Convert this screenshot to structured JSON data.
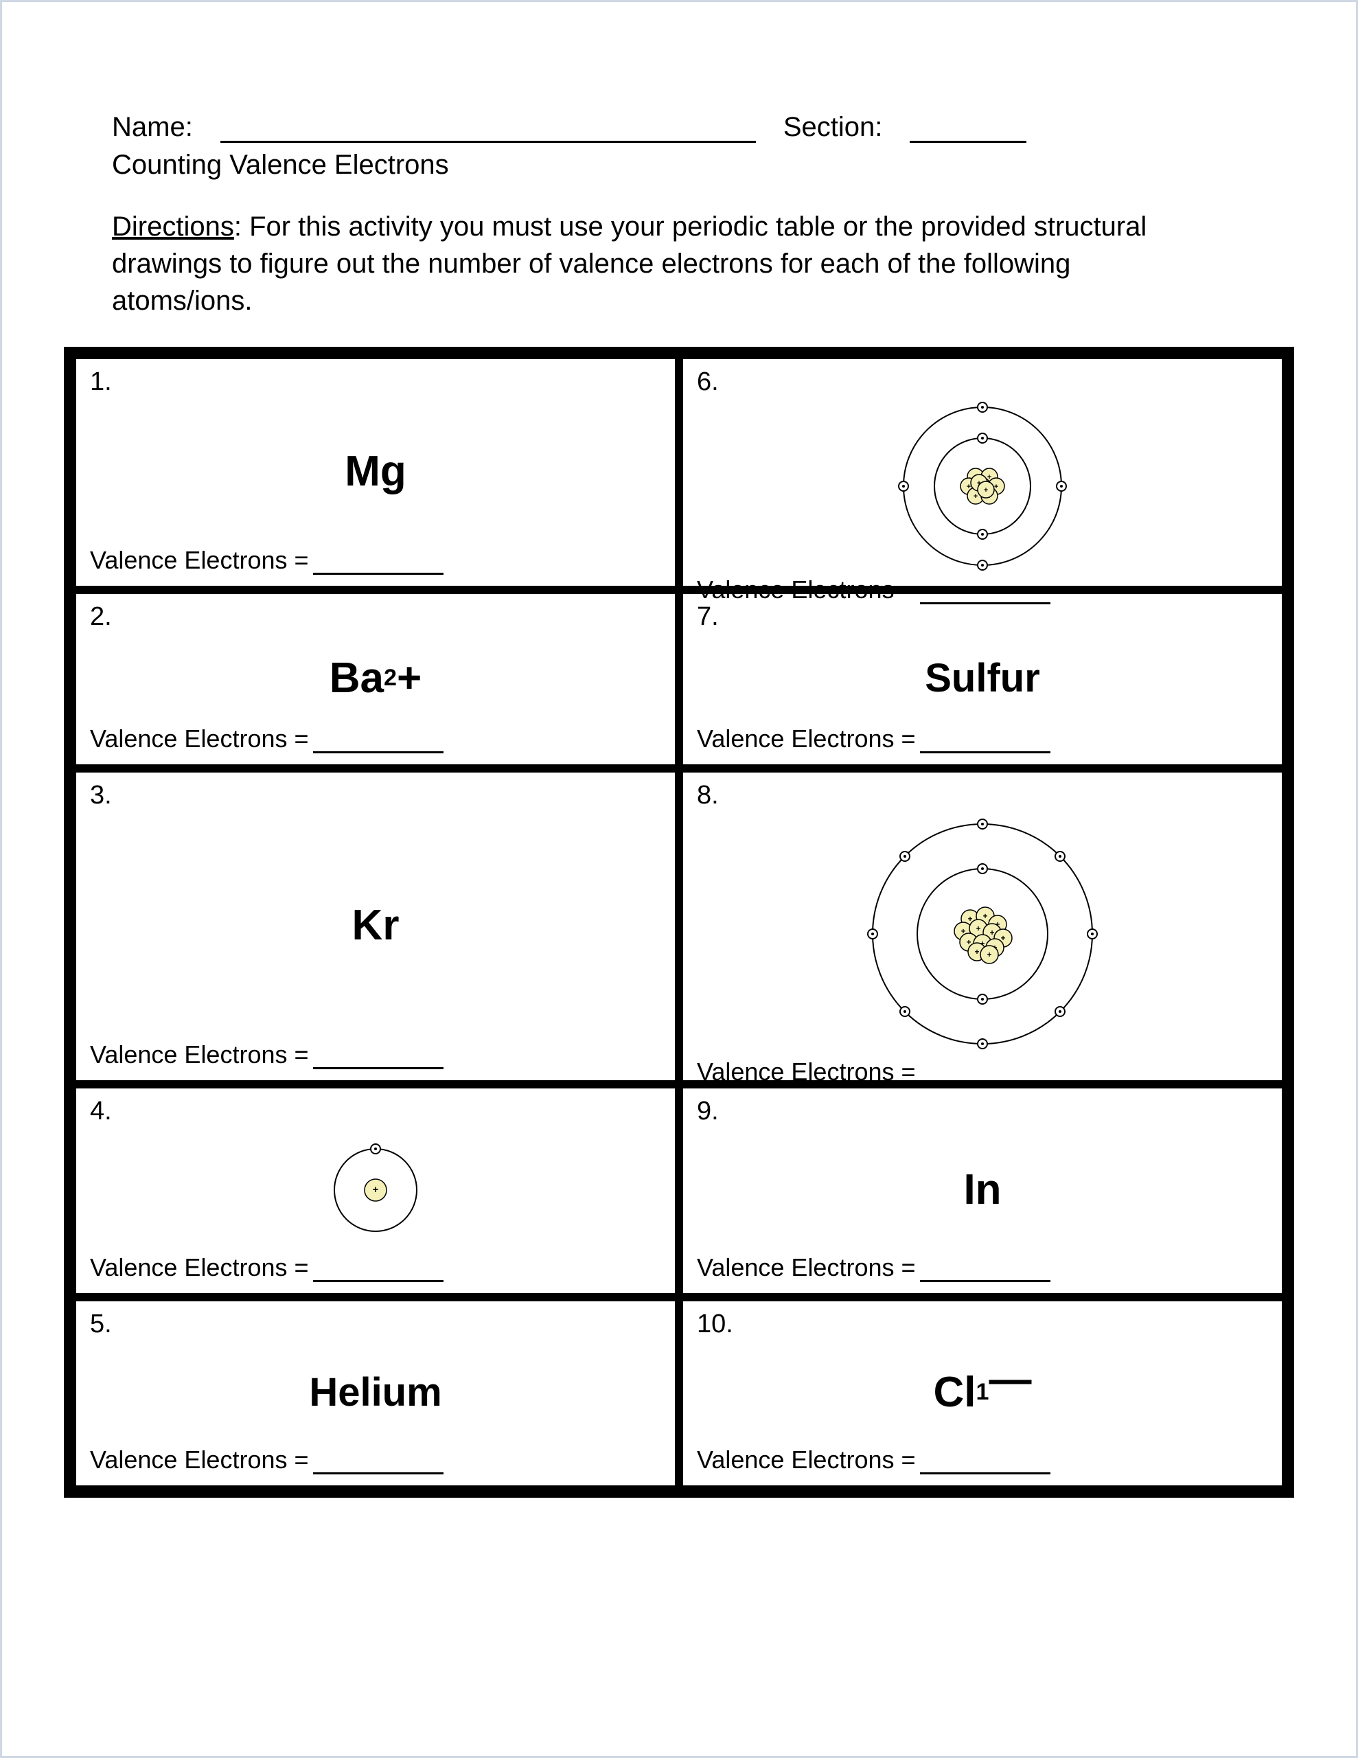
{
  "header": {
    "name_label": "Name:",
    "section_label": "Section:",
    "subtitle": "Counting Valence Electrons",
    "directions_label": "Directions",
    "directions_text": ":  For this activity you must use your periodic table or the provided structural drawings to figure out the number of valence electrons for each of the following atoms/ions."
  },
  "answer_label": "Valence Electrons =",
  "colors": {
    "nucleus_fill": "#f4f0b8",
    "electron_fill": "#ffffff",
    "stroke": "#000000"
  },
  "cells": [
    {
      "num": "1.",
      "type": "text",
      "content": "Mg",
      "row": "row-h1"
    },
    {
      "num": "2.",
      "type": "html",
      "content": "Ba<sup>2</sup>+",
      "row": "row-h2"
    },
    {
      "num": "3.",
      "type": "text",
      "content": "Kr",
      "row": "row-h3"
    },
    {
      "num": "4.",
      "type": "atom",
      "atom": "hydrogen",
      "row": "row-h4"
    },
    {
      "num": "5.",
      "type": "text",
      "content": "Helium",
      "row": "row-h5",
      "cls": "txt"
    },
    {
      "num": "6.",
      "type": "atom",
      "atom": "carbon",
      "row": "row-h1"
    },
    {
      "num": "7.",
      "type": "text",
      "content": "Sulfur",
      "row": "row-h2",
      "cls": "txt"
    },
    {
      "num": "8.",
      "type": "atom",
      "atom": "neon",
      "row": "row-h3"
    },
    {
      "num": "9.",
      "type": "text",
      "content": "In",
      "row": "row-h4"
    },
    {
      "num": "10.",
      "type": "html",
      "content": "Cl<sup>1</sup><span style='position:relative;top:-0.3em'>&#8212;</span>",
      "row": "row-h5"
    }
  ],
  "atoms": {
    "hydrogen": {
      "size": 180,
      "shells": [
        {
          "r": 60,
          "electrons": [
            [
              0,
              -60
            ]
          ]
        }
      ],
      "nucleus_protons": [
        [
          0,
          0,
          16
        ]
      ]
    },
    "carbon": {
      "size": 260,
      "shells": [
        {
          "r": 70,
          "electrons": [
            [
              0,
              -70
            ],
            [
              0,
              70
            ]
          ]
        },
        {
          "r": 115,
          "electrons": [
            [
              0,
              -115
            ],
            [
              115,
              0
            ],
            [
              0,
              115
            ],
            [
              -115,
              0
            ]
          ]
        }
      ],
      "nucleus_protons": [
        [
          -10,
          -14,
          12
        ],
        [
          10,
          -14,
          12
        ],
        [
          -20,
          0,
          12
        ],
        [
          0,
          0,
          12
        ],
        [
          20,
          0,
          12
        ],
        [
          -10,
          14,
          12
        ],
        [
          10,
          14,
          12
        ],
        [
          -5,
          -5,
          12
        ],
        [
          5,
          5,
          12
        ]
      ]
    },
    "neon": {
      "size": 360,
      "shells": [
        {
          "r": 95,
          "electrons": [
            [
              0,
              -95
            ],
            [
              0,
              95
            ]
          ]
        },
        {
          "r": 160,
          "electrons": [
            [
              0,
              -160
            ],
            [
              113,
              -113
            ],
            [
              160,
              0
            ],
            [
              113,
              113
            ],
            [
              0,
              160
            ],
            [
              -113,
              113
            ],
            [
              -160,
              0
            ],
            [
              -113,
              -113
            ]
          ]
        }
      ],
      "nucleus_protons": [
        [
          -18,
          -22,
          13
        ],
        [
          4,
          -26,
          13
        ],
        [
          22,
          -14,
          13
        ],
        [
          -28,
          -4,
          13
        ],
        [
          -6,
          -8,
          13
        ],
        [
          14,
          -2,
          13
        ],
        [
          30,
          6,
          13
        ],
        [
          -20,
          12,
          13
        ],
        [
          0,
          14,
          13
        ],
        [
          18,
          20,
          13
        ],
        [
          -8,
          26,
          13
        ],
        [
          10,
          30,
          13
        ]
      ]
    }
  }
}
